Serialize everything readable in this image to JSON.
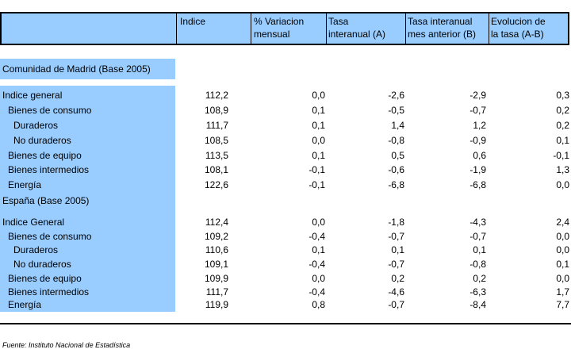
{
  "header": {
    "col1": "Indice",
    "col2": "% Variacion\nmensual",
    "col3": "Tasa\ninteranual (A)",
    "col4": "Tasa interanual\nmes anterior (B)",
    "col5": "Evolucion de\nla tasa (A-B)"
  },
  "sections": [
    {
      "title": "Comunidad de Madrid (Base 2005)",
      "rows": [
        {
          "label": "Indice general",
          "v1": "112,2",
          "v2": "0,0",
          "v3": "-2,6",
          "v4": "-2,9",
          "v5": "0,3"
        },
        {
          "label": "Bienes de consumo",
          "v1": "108,9",
          "v2": "0,1",
          "v3": "-0,5",
          "v4": "-0,7",
          "v5": "0,2"
        },
        {
          "label": "Duraderos",
          "v1": "111,7",
          "v2": "0,1",
          "v3": "1,4",
          "v4": "1,2",
          "v5": "0,2"
        },
        {
          "label": "No duraderos",
          "v1": "108,5",
          "v2": "0,0",
          "v3": "-0,8",
          "v4": "-0,9",
          "v5": "0,1"
        },
        {
          "label": "Bienes de equipo",
          "v1": "113,5",
          "v2": "0,1",
          "v3": "0,5",
          "v4": "0,6",
          "v5": "-0,1"
        },
        {
          "label": "Bienes intermedios",
          "v1": "108,1",
          "v2": "-0,1",
          "v3": "-0,6",
          "v4": "-1,9",
          "v5": "1,3"
        },
        {
          "label": "Energía",
          "v1": "122,6",
          "v2": "-0,1",
          "v3": "-6,8",
          "v4": "-6,8",
          "v5": "0,0"
        }
      ]
    },
    {
      "title": "España (Base 2005)",
      "rows": [
        {
          "label": "Indice General",
          "v1": "112,4",
          "v2": "0,0",
          "v3": "-1,8",
          "v4": "-4,3",
          "v5": "2,4"
        },
        {
          "label": "Bienes de consumo",
          "v1": "109,2",
          "v2": "-0,4",
          "v3": "-0,7",
          "v4": "-0,7",
          "v5": "0,0"
        },
        {
          "label": "Duraderos",
          "v1": "110,6",
          "v2": "0,1",
          "v3": "0,1",
          "v4": "0,1",
          "v5": "0,0"
        },
        {
          "label": "No duraderos",
          "v1": "109,1",
          "v2": "-0,4",
          "v3": "-0,7",
          "v4": "-0,8",
          "v5": "0,1"
        },
        {
          "label": "Bienes de equipo",
          "v1": "109,9",
          "v2": "0,0",
          "v3": "0,2",
          "v4": "0,2",
          "v5": "0,0"
        },
        {
          "label": "Bienes intermedios",
          "v1": "111,7",
          "v2": "-0,4",
          "v3": "-4,6",
          "v4": "-6,3",
          "v5": "1,7"
        },
        {
          "label": "Energía",
          "v1": "119,9",
          "v2": "0,8",
          "v3": "-0,7",
          "v4": "-8,4",
          "v5": "7,7"
        }
      ]
    }
  ],
  "source": "Fuente: Instituto Nacional de Estadística",
  "colors": {
    "header_bg": "#99ccff",
    "label_bg": "#99ccff"
  }
}
